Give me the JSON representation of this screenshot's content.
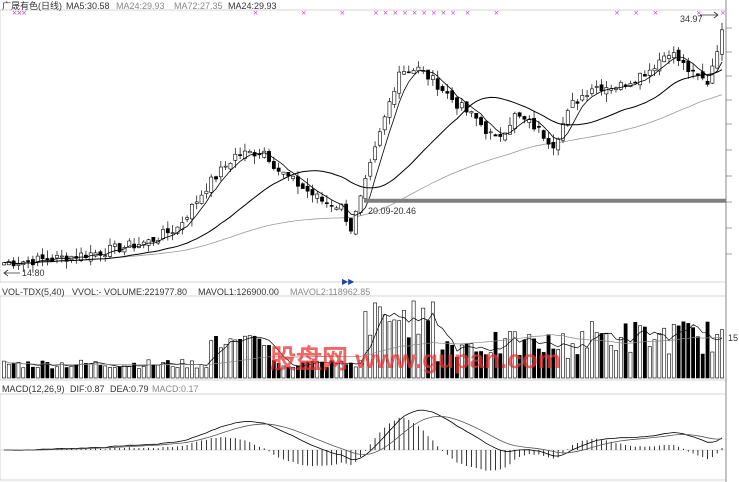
{
  "header": {
    "title": "广晟有色(日线)",
    "ma5": "MA5:30.58",
    "ma24a": "MA24:29.93",
    "ma72": "MA72:27.35",
    "ma24b": "MA24:29.93"
  },
  "price_panel": {
    "high_label": "34.97",
    "low_label": "14.80",
    "support_label": "20.09-20.46",
    "support_price": 20.3,
    "yrange": [
      13.5,
      36.5
    ],
    "marker_count": 22
  },
  "vol_panel": {
    "title": "VOL-TDX(5,40)",
    "vvol": "VVOL:-",
    "volume": "VOLUME:221977.80",
    "mavol1": "MAVOL1:126900.00",
    "mavol2": "MAVOL2:118962.85",
    "right_label": "15"
  },
  "macd_panel": {
    "title": "MACD(12,26,9)",
    "dif": "DIF:0.87",
    "dea": "DEA:0.79",
    "macd": "MACD:0.17"
  },
  "watermark": "股盘网 www.gupan.com",
  "colors": {
    "up": "#000000",
    "down": "#000000",
    "ma5": "#000000",
    "ma24": "#000000",
    "ma72": "#999999",
    "support": "#7f7f7f",
    "marker": "#cc33cc"
  },
  "chart_data": {
    "type": "candlestick",
    "title": "广晟有色(日线)",
    "bars": 150,
    "price_path_anchors": [
      [
        0,
        15.0
      ],
      [
        10,
        15.3
      ],
      [
        20,
        15.9
      ],
      [
        30,
        16.8
      ],
      [
        36,
        18.0
      ],
      [
        42,
        21.5
      ],
      [
        48,
        24.2
      ],
      [
        54,
        24.6
      ],
      [
        57,
        22.9
      ],
      [
        62,
        21.4
      ],
      [
        66,
        20.3
      ],
      [
        70,
        19.8
      ],
      [
        72,
        17.9
      ],
      [
        74,
        20.4
      ],
      [
        78,
        26.0
      ],
      [
        82,
        31.5
      ],
      [
        86,
        31.6
      ],
      [
        90,
        30.3
      ],
      [
        94,
        28.6
      ],
      [
        98,
        27.3
      ],
      [
        102,
        25.5
      ],
      [
        106,
        27.6
      ],
      [
        110,
        26.7
      ],
      [
        114,
        25.2
      ],
      [
        118,
        28.6
      ],
      [
        122,
        30.1
      ],
      [
        128,
        30.2
      ],
      [
        134,
        31.6
      ],
      [
        138,
        33.2
      ],
      [
        143,
        31.1
      ],
      [
        146,
        30.5
      ],
      [
        149,
        34.97
      ]
    ],
    "low": 14.8,
    "high": 34.97,
    "support_zone": [
      20.09,
      20.46
    ],
    "series": [
      {
        "name": "MA5",
        "value": 30.58
      },
      {
        "name": "MA24",
        "value": 29.93
      },
      {
        "name": "MA72",
        "value": 27.35
      }
    ],
    "volume": {
      "VOLUME": 221977.8,
      "MAVOL1": 126900.0,
      "MAVOL2": 118962.85
    },
    "macd": {
      "DIF": 0.87,
      "DEA": 0.79,
      "MACD": 0.17
    }
  }
}
